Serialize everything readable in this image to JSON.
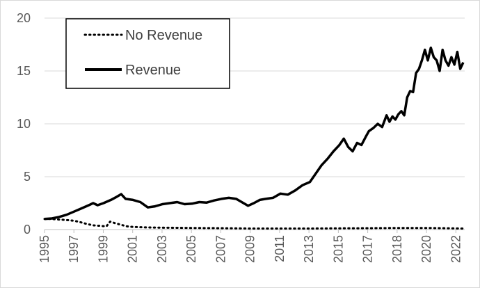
{
  "chart_data": {
    "type": "line",
    "title": "",
    "xlabel": "",
    "ylabel": "",
    "xlim": [
      1995,
      2023.5
    ],
    "ylim": [
      0,
      20
    ],
    "yticks": [
      0,
      5,
      10,
      15,
      20
    ],
    "xtick_labels": [
      "1995",
      "1997",
      "1999",
      "2001",
      "2003",
      "2005",
      "2007",
      "2009",
      "2011",
      "2013",
      "2015",
      "2017",
      "2018",
      "2020",
      "2022"
    ],
    "grid": "horizontal",
    "legend_position": "top-left",
    "series": [
      {
        "name": "No Revenue",
        "style": "dotted",
        "color": "#000000",
        "points": [
          [
            1995.0,
            1.0
          ],
          [
            1995.5,
            1.0
          ],
          [
            1996.0,
            0.95
          ],
          [
            1996.5,
            0.9
          ],
          [
            1996.9,
            0.85
          ],
          [
            1997.3,
            0.75
          ],
          [
            1997.8,
            0.55
          ],
          [
            1998.3,
            0.4
          ],
          [
            1998.8,
            0.35
          ],
          [
            1999.2,
            0.3
          ],
          [
            1999.45,
            0.75
          ],
          [
            1999.8,
            0.6
          ],
          [
            2000.2,
            0.45
          ],
          [
            2000.6,
            0.3
          ],
          [
            2001.0,
            0.25
          ],
          [
            2002.0,
            0.2
          ],
          [
            2003.0,
            0.18
          ],
          [
            2005.0,
            0.15
          ],
          [
            2007.0,
            0.13
          ],
          [
            2009.0,
            0.1
          ],
          [
            2011.0,
            0.1
          ],
          [
            2013.0,
            0.1
          ],
          [
            2015.0,
            0.12
          ],
          [
            2017.0,
            0.13
          ],
          [
            2019.0,
            0.15
          ],
          [
            2021.0,
            0.15
          ],
          [
            2022.0,
            0.13
          ],
          [
            2023.4,
            0.1
          ]
        ]
      },
      {
        "name": "Revenue",
        "style": "solid",
        "color": "#000000",
        "points": [
          [
            1995.0,
            1.0
          ],
          [
            1995.5,
            1.05
          ],
          [
            1996.0,
            1.2
          ],
          [
            1996.5,
            1.4
          ],
          [
            1997.0,
            1.7
          ],
          [
            1997.5,
            2.0
          ],
          [
            1998.0,
            2.3
          ],
          [
            1998.3,
            2.5
          ],
          [
            1998.6,
            2.3
          ],
          [
            1999.0,
            2.5
          ],
          [
            1999.5,
            2.8
          ],
          [
            1999.9,
            3.1
          ],
          [
            2000.2,
            3.35
          ],
          [
            2000.5,
            2.9
          ],
          [
            2001.0,
            2.8
          ],
          [
            2001.5,
            2.6
          ],
          [
            2002.0,
            2.1
          ],
          [
            2002.5,
            2.2
          ],
          [
            2003.0,
            2.4
          ],
          [
            2003.5,
            2.5
          ],
          [
            2004.0,
            2.6
          ],
          [
            2004.5,
            2.4
          ],
          [
            2005.0,
            2.45
          ],
          [
            2005.5,
            2.6
          ],
          [
            2006.0,
            2.55
          ],
          [
            2006.5,
            2.75
          ],
          [
            2007.0,
            2.9
          ],
          [
            2007.5,
            3.0
          ],
          [
            2008.0,
            2.9
          ],
          [
            2008.5,
            2.5
          ],
          [
            2008.8,
            2.25
          ],
          [
            2009.2,
            2.5
          ],
          [
            2009.6,
            2.8
          ],
          [
            2010.0,
            2.9
          ],
          [
            2010.5,
            3.0
          ],
          [
            2011.0,
            3.4
          ],
          [
            2011.5,
            3.3
          ],
          [
            2012.0,
            3.7
          ],
          [
            2012.5,
            4.2
          ],
          [
            2013.0,
            4.5
          ],
          [
            2013.4,
            5.3
          ],
          [
            2013.8,
            6.1
          ],
          [
            2014.2,
            6.7
          ],
          [
            2014.6,
            7.4
          ],
          [
            2015.0,
            8.0
          ],
          [
            2015.3,
            8.6
          ],
          [
            2015.6,
            7.8
          ],
          [
            2015.9,
            7.4
          ],
          [
            2016.2,
            8.2
          ],
          [
            2016.5,
            8.0
          ],
          [
            2016.8,
            8.8
          ],
          [
            2017.0,
            9.3
          ],
          [
            2017.3,
            9.6
          ],
          [
            2017.6,
            10.0
          ],
          [
            2017.9,
            9.7
          ],
          [
            2018.2,
            10.8
          ],
          [
            2018.4,
            10.2
          ],
          [
            2018.6,
            10.7
          ],
          [
            2018.8,
            10.4
          ],
          [
            2019.0,
            10.9
          ],
          [
            2019.2,
            11.2
          ],
          [
            2019.4,
            10.8
          ],
          [
            2019.6,
            12.5
          ],
          [
            2019.8,
            13.1
          ],
          [
            2020.0,
            13.0
          ],
          [
            2020.2,
            14.8
          ],
          [
            2020.4,
            15.2
          ],
          [
            2020.6,
            16.0
          ],
          [
            2020.8,
            17.0
          ],
          [
            2021.0,
            16.0
          ],
          [
            2021.2,
            17.2
          ],
          [
            2021.4,
            16.3
          ],
          [
            2021.6,
            16.0
          ],
          [
            2021.8,
            15.0
          ],
          [
            2022.0,
            17.0
          ],
          [
            2022.2,
            16.0
          ],
          [
            2022.4,
            15.5
          ],
          [
            2022.6,
            16.3
          ],
          [
            2022.8,
            15.6
          ],
          [
            2023.0,
            16.8
          ],
          [
            2023.2,
            15.2
          ],
          [
            2023.4,
            15.8
          ]
        ]
      }
    ]
  }
}
